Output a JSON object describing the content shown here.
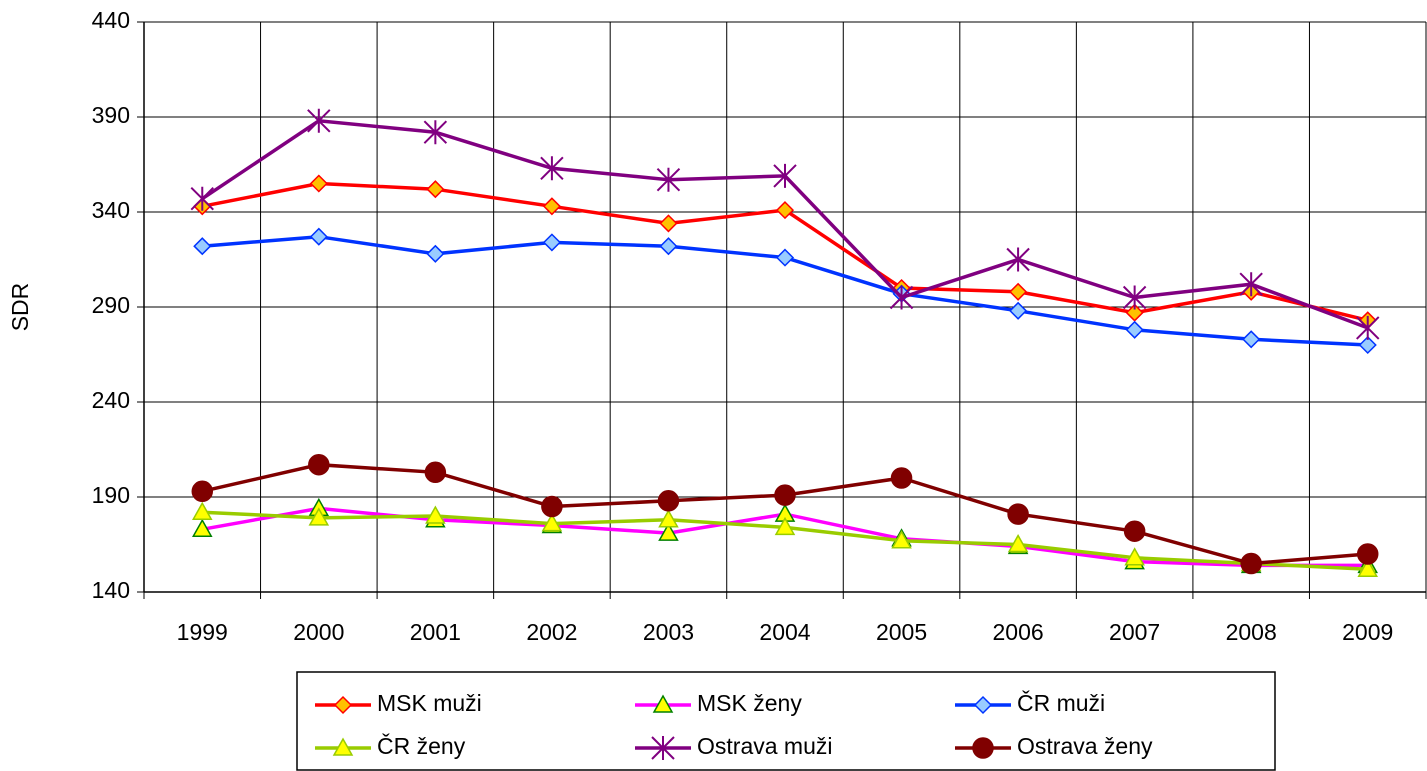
{
  "chart_data": {
    "type": "line",
    "y_label": "SDR",
    "categories": [
      "1999",
      "2000",
      "2001",
      "2002",
      "2003",
      "2004",
      "2005",
      "2006",
      "2007",
      "2008",
      "2009"
    ],
    "ylim": [
      140,
      440
    ],
    "yticks": [
      140,
      190,
      240,
      290,
      340,
      390,
      440
    ],
    "grid": true,
    "legend": "bottom",
    "series": [
      {
        "name": "MSK muži",
        "color": "#ff0000",
        "marker": "diamond",
        "marker_fill": "#ffc000",
        "marker_stroke": "#ff0000",
        "values": [
          343,
          355,
          352,
          343,
          334,
          341,
          300,
          298,
          287,
          298,
          283
        ]
      },
      {
        "name": "MSK ženy",
        "color": "#ff00ff",
        "marker": "triangle",
        "marker_fill": "#ffff00",
        "marker_stroke": "#008000",
        "values": [
          173,
          184,
          178,
          175,
          171,
          181,
          168,
          164,
          156,
          154,
          154
        ]
      },
      {
        "name": "ČR muži",
        "color": "#0033ff",
        "marker": "diamond",
        "marker_fill": "#99ccff",
        "marker_stroke": "#0033ff",
        "values": [
          322,
          327,
          318,
          324,
          322,
          316,
          297,
          288,
          278,
          273,
          270
        ]
      },
      {
        "name": "ČR ženy",
        "color": "#99cc00",
        "marker": "triangle",
        "marker_fill": "#ffff00",
        "marker_stroke": "#99cc00",
        "values": [
          182,
          179,
          180,
          176,
          178,
          174,
          167,
          165,
          158,
          155,
          152
        ]
      },
      {
        "name": "Ostrava muži",
        "color": "#800080",
        "marker": "asterisk",
        "marker_fill": "#800080",
        "marker_stroke": "#800080",
        "values": [
          347,
          388,
          382,
          363,
          357,
          359,
          295,
          315,
          295,
          302,
          279
        ]
      },
      {
        "name": "Ostrava ženy",
        "color": "#800000",
        "marker": "circle",
        "marker_fill": "#800000",
        "marker_stroke": "#800000",
        "values": [
          193,
          207,
          203,
          185,
          188,
          191,
          200,
          181,
          172,
          155,
          160
        ]
      }
    ]
  }
}
